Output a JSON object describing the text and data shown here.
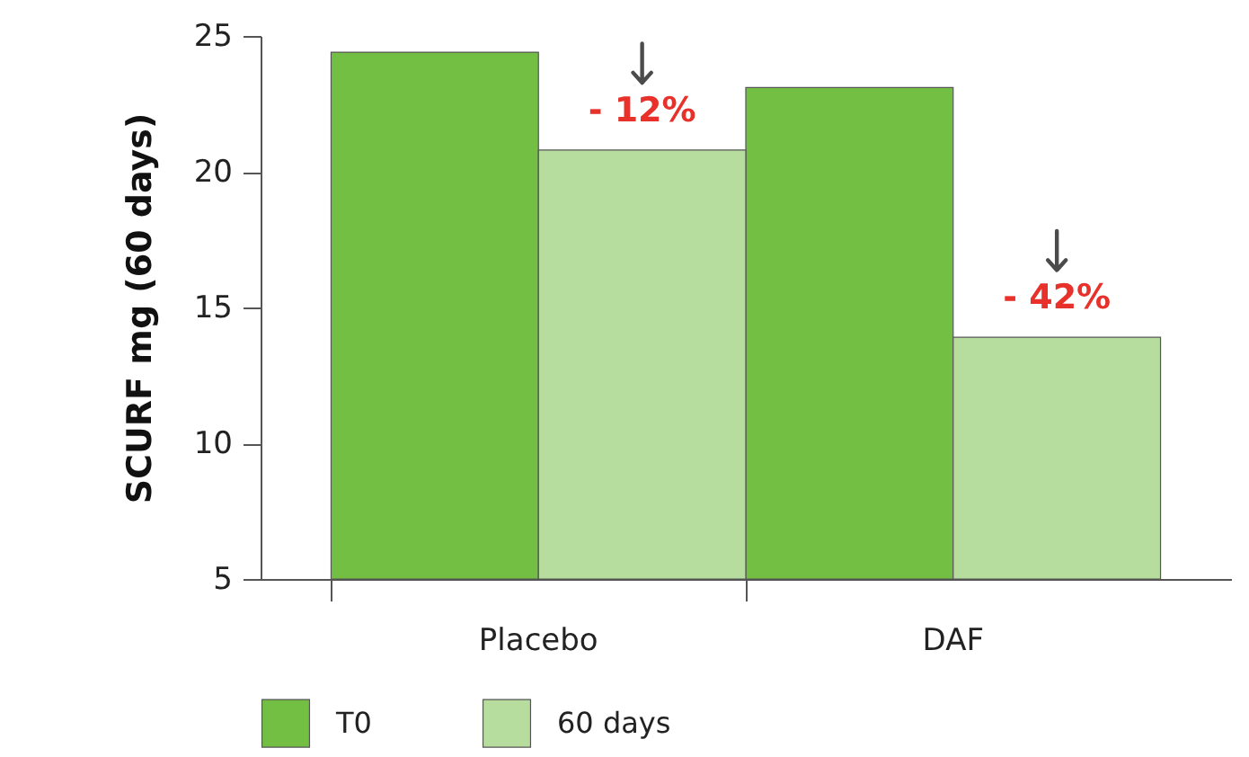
{
  "chart_data": {
    "type": "bar",
    "ylabel": "SCURF mg (60 days)",
    "categories": [
      "Placebo",
      "DAF"
    ],
    "series": [
      {
        "name": "T0",
        "color": "#72bf44",
        "values": [
          24.4,
          23.1
        ]
      },
      {
        "name": "60 days",
        "color": "#b6dc9e",
        "values": [
          20.8,
          13.9
        ]
      }
    ],
    "ylim": [
      5,
      25
    ],
    "yticks": [
      5,
      10,
      15,
      20,
      25
    ],
    "grid": false,
    "legend": "bottom left",
    "annotations": [
      {
        "text": "- 12%",
        "x": "Placebo",
        "y": 20.8
      },
      {
        "text": "- 42%",
        "x": "DAF",
        "y": 13.9
      }
    ]
  }
}
